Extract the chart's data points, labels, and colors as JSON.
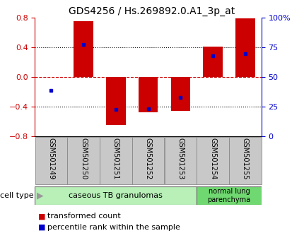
{
  "title": "GDS4256 / Hs.269892.0.A1_3p_at",
  "samples": [
    "GSM501249",
    "GSM501250",
    "GSM501251",
    "GSM501252",
    "GSM501253",
    "GSM501254",
    "GSM501255"
  ],
  "bar_values": [
    0.0,
    0.75,
    -0.65,
    -0.48,
    -0.46,
    0.41,
    0.79
  ],
  "dot_values_left": [
    -0.18,
    0.44,
    -0.44,
    -0.43,
    -0.28,
    0.28,
    0.31
  ],
  "ylim": [
    -0.8,
    0.8
  ],
  "ylim_right": [
    0,
    100
  ],
  "bar_color": "#cc0000",
  "dot_color": "#0000cc",
  "dashed_line_color": "#cc0000",
  "bg_color": "#ffffff",
  "cell_type_groups": [
    {
      "label": "caseous TB granulomas",
      "n_samples": 5,
      "color": "#b8f0b8"
    },
    {
      "label": "normal lung\nparenchyma",
      "n_samples": 2,
      "color": "#70d870"
    }
  ],
  "legend_bar_label": "transformed count",
  "legend_dot_label": "percentile rank within the sample",
  "ylabel_left_color": "#cc0000",
  "ylabel_right_color": "#0000cc",
  "bar_width": 0.6,
  "title_fontsize": 10,
  "tick_fontsize": 8,
  "label_fontsize": 7,
  "legend_fontsize": 8,
  "sample_box_color": "#c8c8c8",
  "cell_type_label_fontsize": 8,
  "cell_type_small_fontsize": 7
}
